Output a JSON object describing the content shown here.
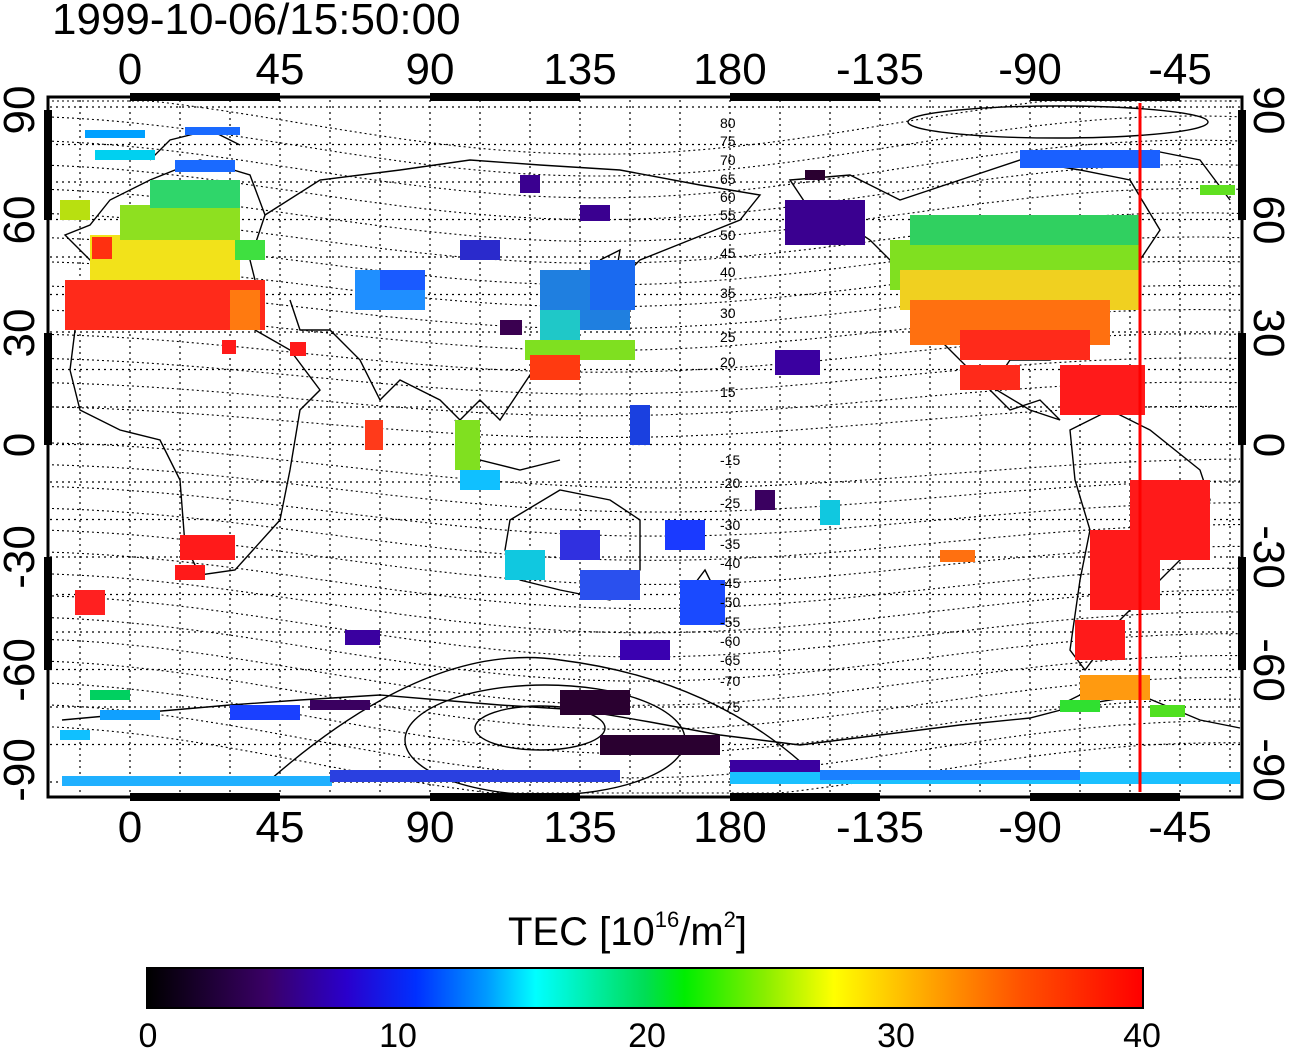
{
  "title": "1999-10-06/15:50:00",
  "lon_ticks": [
    "0",
    "45",
    "90",
    "135",
    "180",
    "-135",
    "-90",
    "-45"
  ],
  "lat_ticks": [
    "90",
    "60",
    "30",
    "0",
    "-30",
    "-60",
    "-90"
  ],
  "contour_labels": [
    "80",
    "75",
    "70",
    "65",
    "60",
    "55",
    "50",
    "45",
    "40",
    "35",
    "30",
    "25",
    "20",
    "15",
    "-15",
    "-20",
    "-25",
    "-30",
    "-35",
    "-40",
    "-45",
    "-50",
    "-55",
    "-60",
    "-65",
    "-70",
    "-75"
  ],
  "colorbar": {
    "label_main": "TEC  [10",
    "label_sup1": "16",
    "label_mid": "/m",
    "label_sup2": "2",
    "label_end": "]",
    "ticks": [
      "0",
      "10",
      "20",
      "30",
      "40"
    ],
    "range": [
      0,
      40
    ]
  },
  "marker_longitude": -57,
  "colors": {
    "marker": "#ff0000",
    "frame": "#000000"
  }
}
